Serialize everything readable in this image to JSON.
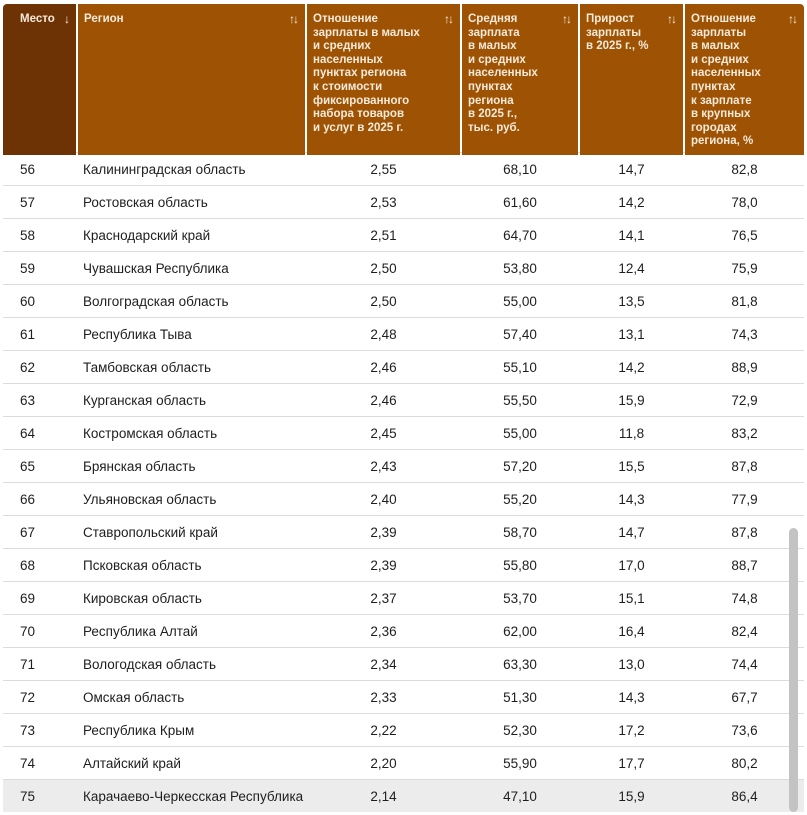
{
  "colors": {
    "header_dark": "#6e3305",
    "header_light": "#9e5304",
    "header_text": "#f6ead9",
    "row_text": "#1e1e1e",
    "divider": "#dcdcdc",
    "scrollbar": "#c3c3c3",
    "last_row_bg": "#ececec",
    "page_bg": "#ffffff"
  },
  "table": {
    "columns": [
      {
        "id": "rank",
        "label": "Место",
        "sort": "↓",
        "sorted": true
      },
      {
        "id": "region",
        "label": "Регион",
        "sort": "↑↓",
        "sorted": false
      },
      {
        "id": "ratio-goods",
        "label": "Отношение\nзарплаты в малых\nи средних населенных\nпунктах региона\nк стоимости\nфиксированного\nнабора товаров\nи услуг в 2025 г.",
        "sort": "↑↓",
        "sorted": false
      },
      {
        "id": "avg-salary",
        "label": "Средняя\nзарплата\nв малых\nи средних\nнаселенных\nпунктах\nрегиона\nв 2025 г.,\nтыс. руб.",
        "sort": "↑↓",
        "sorted": false
      },
      {
        "id": "salary-growth",
        "label": "Прирост\nзарплаты\nв 2025 г., %",
        "sort": "↑↓",
        "sorted": false
      },
      {
        "id": "ratio-cities",
        "label": "Отношение\nзарплаты\nв малых\nи средних\nнаселенных\nпунктах\nк зарплате\nв крупных\nгородах\nрегиона, %",
        "sort": "↑↓",
        "sorted": false
      }
    ],
    "rows": [
      {
        "rank": "56",
        "region": "Калининградская область",
        "values": [
          "2,55",
          "68,10",
          "14,7",
          "82,8"
        ]
      },
      {
        "rank": "57",
        "region": "Ростовская область",
        "values": [
          "2,53",
          "61,60",
          "14,2",
          "78,0"
        ]
      },
      {
        "rank": "58",
        "region": "Краснодарский край",
        "values": [
          "2,51",
          "64,70",
          "14,1",
          "76,5"
        ]
      },
      {
        "rank": "59",
        "region": "Чувашская Республика",
        "values": [
          "2,50",
          "53,80",
          "12,4",
          "75,9"
        ]
      },
      {
        "rank": "60",
        "region": "Волгоградская область",
        "values": [
          "2,50",
          "55,00",
          "13,5",
          "81,8"
        ]
      },
      {
        "rank": "61",
        "region": "Республика Тыва",
        "values": [
          "2,48",
          "57,40",
          "13,1",
          "74,3"
        ]
      },
      {
        "rank": "62",
        "region": "Тамбовская область",
        "values": [
          "2,46",
          "55,10",
          "14,2",
          "88,9"
        ]
      },
      {
        "rank": "63",
        "region": "Курганская область",
        "values": [
          "2,46",
          "55,50",
          "15,9",
          "72,9"
        ]
      },
      {
        "rank": "64",
        "region": "Костромская область",
        "values": [
          "2,45",
          "55,00",
          "11,8",
          "83,2"
        ]
      },
      {
        "rank": "65",
        "region": "Брянская область",
        "values": [
          "2,43",
          "57,20",
          "15,5",
          "87,8"
        ]
      },
      {
        "rank": "66",
        "region": "Ульяновская область",
        "values": [
          "2,40",
          "55,20",
          "14,3",
          "77,9"
        ]
      },
      {
        "rank": "67",
        "region": "Ставропольский край",
        "values": [
          "2,39",
          "58,70",
          "14,7",
          "87,8"
        ]
      },
      {
        "rank": "68",
        "region": "Псковская область",
        "values": [
          "2,39",
          "55,80",
          "17,0",
          "88,7"
        ]
      },
      {
        "rank": "69",
        "region": "Кировская область",
        "values": [
          "2,37",
          "53,70",
          "15,1",
          "74,8"
        ]
      },
      {
        "rank": "70",
        "region": "Республика Алтай",
        "values": [
          "2,36",
          "62,00",
          "16,4",
          "82,4"
        ]
      },
      {
        "rank": "71",
        "region": "Вологодская область",
        "values": [
          "2,34",
          "63,30",
          "13,0",
          "74,4"
        ]
      },
      {
        "rank": "72",
        "region": "Омская область",
        "values": [
          "2,33",
          "51,30",
          "14,3",
          "67,7"
        ]
      },
      {
        "rank": "73",
        "region": "Республика Крым",
        "values": [
          "2,22",
          "52,30",
          "17,2",
          "73,6"
        ]
      },
      {
        "rank": "74",
        "region": "Алтайский край",
        "values": [
          "2,20",
          "55,90",
          "17,7",
          "80,2"
        ]
      },
      {
        "rank": "75",
        "region": "Карачаево-Черкесская Республика",
        "values": [
          "2,14",
          "47,10",
          "15,9",
          "86,4"
        ]
      }
    ]
  }
}
